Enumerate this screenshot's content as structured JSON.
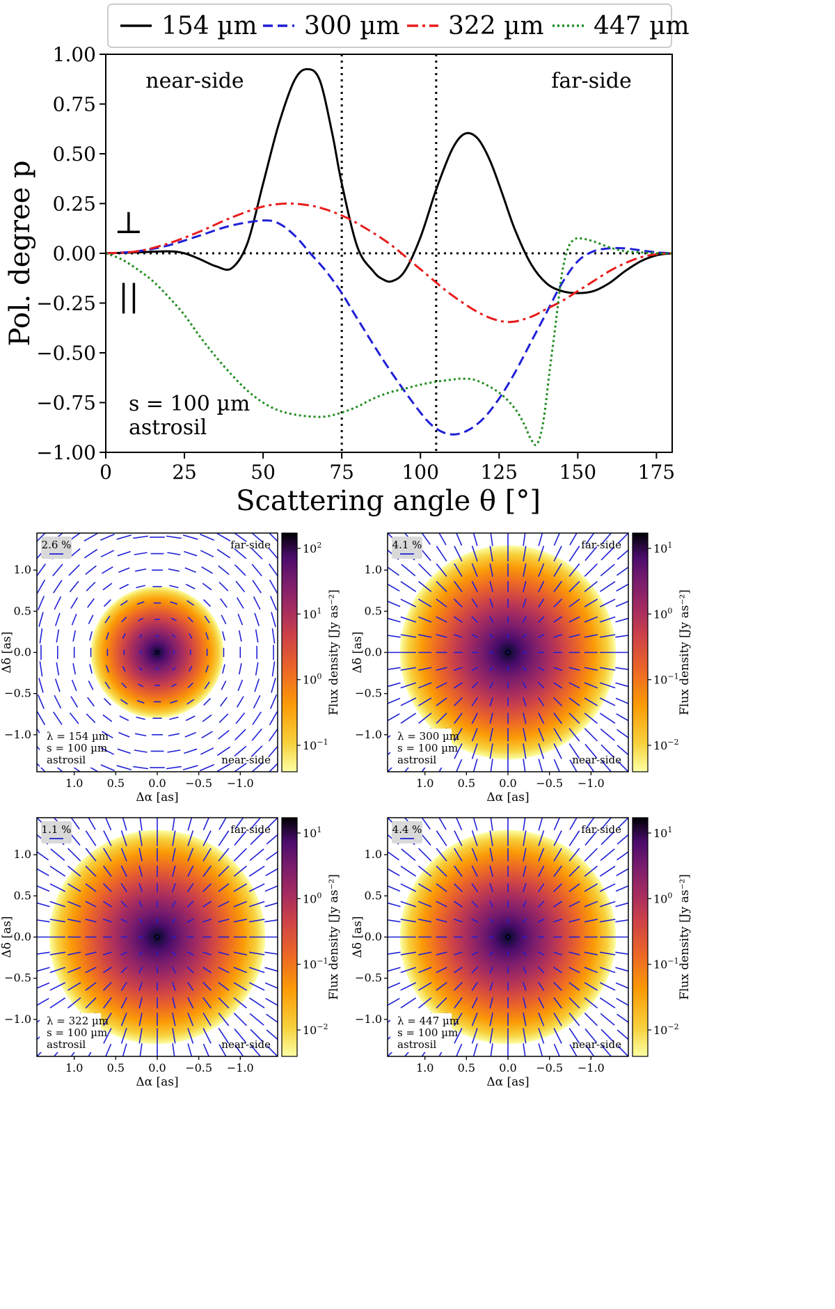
{
  "chart_data": [
    {
      "type": "line",
      "xlabel": "Scattering angle θ [°]",
      "ylabel": "Pol. degree p",
      "xlim": [
        0,
        180
      ],
      "ylim": [
        -1.0,
        1.0
      ],
      "xticks": [
        "0",
        "25",
        "50",
        "75",
        "100",
        "125",
        "150",
        "175"
      ],
      "yticks": [
        "1.00",
        "0.75",
        "0.50",
        "0.25",
        "0.00",
        "−0.25",
        "−0.50",
        "−0.75",
        "−1.00"
      ],
      "legend_position": "top, outside",
      "region_labels": {
        "near": "near-side",
        "far": "far-side"
      },
      "perp_symbol": "⊥",
      "par_symbol": "||",
      "dotted_lines_x": [
        75,
        105
      ],
      "dotted_line_y": 0,
      "annotation": [
        "s = 100 µm",
        "astrosil"
      ],
      "series": [
        {
          "name": "154 µm",
          "color": "#000000",
          "dash": "solid",
          "x": [
            0,
            10,
            20,
            25,
            30,
            35,
            40,
            45,
            50,
            55,
            60,
            64,
            68,
            72,
            75,
            80,
            85,
            88,
            91,
            95,
            100,
            105,
            110,
            114,
            118,
            122,
            126,
            130,
            135,
            140,
            145,
            150,
            155,
            160,
            165,
            170,
            175,
            180
          ],
          "y": [
            0,
            0.005,
            0.01,
            0.0,
            -0.03,
            -0.065,
            -0.075,
            0.05,
            0.35,
            0.65,
            0.87,
            0.925,
            0.87,
            0.6,
            0.35,
            0.03,
            -0.09,
            -0.13,
            -0.14,
            -0.09,
            0.08,
            0.32,
            0.52,
            0.6,
            0.58,
            0.47,
            0.3,
            0.12,
            -0.05,
            -0.15,
            -0.19,
            -0.2,
            -0.19,
            -0.15,
            -0.09,
            -0.04,
            -0.01,
            0
          ]
        },
        {
          "name": "300 µm",
          "color": "#1f1fd6",
          "dash": "dashed",
          "x": [
            0,
            10,
            20,
            30,
            40,
            50,
            55,
            60,
            65,
            70,
            75,
            80,
            90,
            100,
            105,
            110,
            115,
            120,
            125,
            130,
            135,
            140,
            145,
            150,
            155,
            160,
            165,
            170,
            175,
            180
          ],
          "y": [
            0,
            0.01,
            0.04,
            0.09,
            0.14,
            0.165,
            0.15,
            0.09,
            0.0,
            -0.09,
            -0.2,
            -0.33,
            -0.58,
            -0.8,
            -0.88,
            -0.91,
            -0.89,
            -0.83,
            -0.73,
            -0.6,
            -0.45,
            -0.3,
            -0.15,
            -0.04,
            0.01,
            0.025,
            0.025,
            0.015,
            0.005,
            0
          ]
        },
        {
          "name": "322 µm",
          "color": "#e81c1c",
          "dash": "dashdot",
          "x": [
            0,
            10,
            20,
            30,
            40,
            50,
            58,
            65,
            70,
            75,
            80,
            90,
            100,
            110,
            120,
            128,
            135,
            140,
            145,
            150,
            155,
            160,
            165,
            170,
            175,
            180
          ],
          "y": [
            0,
            0.01,
            0.05,
            0.11,
            0.18,
            0.235,
            0.25,
            0.24,
            0.22,
            0.19,
            0.15,
            0.05,
            -0.08,
            -0.21,
            -0.31,
            -0.345,
            -0.32,
            -0.28,
            -0.24,
            -0.19,
            -0.14,
            -0.09,
            -0.05,
            -0.02,
            -0.005,
            0
          ]
        },
        {
          "name": "447 µm",
          "color": "#1f8c1f",
          "dash": "dotted",
          "x": [
            0,
            5,
            10,
            15,
            20,
            25,
            30,
            35,
            40,
            45,
            50,
            55,
            60,
            65,
            70,
            75,
            80,
            85,
            90,
            95,
            100,
            105,
            110,
            113,
            118,
            125,
            130,
            133,
            135,
            137,
            139,
            141,
            143,
            145,
            147,
            149,
            151,
            155,
            160,
            165,
            170,
            175,
            180
          ],
          "y": [
            0,
            -0.03,
            -0.08,
            -0.14,
            -0.22,
            -0.31,
            -0.42,
            -0.52,
            -0.61,
            -0.69,
            -0.75,
            -0.79,
            -0.81,
            -0.82,
            -0.82,
            -0.8,
            -0.77,
            -0.73,
            -0.7,
            -0.68,
            -0.66,
            -0.645,
            -0.635,
            -0.63,
            -0.64,
            -0.7,
            -0.78,
            -0.86,
            -0.93,
            -0.96,
            -0.85,
            -0.6,
            -0.35,
            -0.1,
            0.03,
            0.07,
            0.075,
            0.06,
            0.03,
            0.01,
            0.005,
            0,
            0
          ]
        }
      ]
    },
    {
      "type": "heatmap",
      "xlabel": "Δα [as]",
      "ylabel": "Δδ [as]",
      "xticks": [
        "1.0",
        "0.5",
        "0.0",
        "−0.5",
        "−1.0"
      ],
      "yticks": [
        "1.0",
        "0.5",
        "0.0",
        "−0.5",
        "−1.0"
      ],
      "colorbar_label": "Flux density [Jy as⁻²]",
      "colorbar_ticks": [
        {
          "base": "10",
          "exp": "2"
        },
        {
          "base": "10",
          "exp": "1"
        },
        {
          "base": "10",
          "exp": "0"
        },
        {
          "base": "10",
          "exp": "−1"
        }
      ],
      "scale_label": "2.6 %",
      "far_label": "far-side",
      "near_label": "near-side",
      "annotation": [
        "λ = 154 µm",
        "s = 100 µm",
        "astrosil"
      ],
      "disk_radius_as": 0.8,
      "vector_pattern": "azimuthal"
    },
    {
      "type": "heatmap",
      "xlabel": "Δα [as]",
      "ylabel": "Δδ [as]",
      "xticks": [
        "1.0",
        "0.5",
        "0.0",
        "−0.5",
        "−1.0"
      ],
      "yticks": [
        "1.0",
        "0.5",
        "0.0",
        "−0.5",
        "−1.0"
      ],
      "colorbar_label": "Flux density [Jy as⁻²]",
      "colorbar_ticks": [
        {
          "base": "10",
          "exp": "1"
        },
        {
          "base": "10",
          "exp": "0"
        },
        {
          "base": "10",
          "exp": "−1"
        },
        {
          "base": "10",
          "exp": "−2"
        }
      ],
      "scale_label": "4.1 %",
      "far_label": "far-side",
      "near_label": "near-side",
      "annotation": [
        "λ = 300 µm",
        "s = 100 µm",
        "astrosil"
      ],
      "disk_radius_as": 1.3,
      "vector_pattern": "radial"
    },
    {
      "type": "heatmap",
      "xlabel": "Δα [as]",
      "ylabel": "Δδ [as]",
      "xticks": [
        "1.0",
        "0.5",
        "0.0",
        "−0.5",
        "−1.0"
      ],
      "yticks": [
        "1.0",
        "0.5",
        "0.0",
        "−0.5",
        "−1.0"
      ],
      "colorbar_label": "Flux density [Jy as⁻²]",
      "colorbar_ticks": [
        {
          "base": "10",
          "exp": "1"
        },
        {
          "base": "10",
          "exp": "0"
        },
        {
          "base": "10",
          "exp": "−1"
        },
        {
          "base": "10",
          "exp": "−2"
        }
      ],
      "scale_label": "1.1 %",
      "far_label": "far-side",
      "near_label": "near-side",
      "annotation": [
        "λ = 322 µm",
        "s = 100 µm",
        "astrosil"
      ],
      "disk_radius_as": 1.3,
      "vector_pattern": "radial"
    },
    {
      "type": "heatmap",
      "xlabel": "Δα [as]",
      "ylabel": "Δδ [as]",
      "xticks": [
        "1.0",
        "0.5",
        "0.0",
        "−0.5",
        "−1.0"
      ],
      "yticks": [
        "1.0",
        "0.5",
        "0.0",
        "−0.5",
        "−1.0"
      ],
      "colorbar_label": "Flux density [Jy as⁻²]",
      "colorbar_ticks": [
        {
          "base": "10",
          "exp": "1"
        },
        {
          "base": "10",
          "exp": "0"
        },
        {
          "base": "10",
          "exp": "−1"
        },
        {
          "base": "10",
          "exp": "−2"
        }
      ],
      "scale_label": "4.4 %",
      "far_label": "far-side",
      "near_label": "near-side",
      "annotation": [
        "λ = 447 µm",
        "s = 100 µm",
        "astrosil"
      ],
      "disk_radius_as": 1.3,
      "vector_pattern": "radial"
    }
  ]
}
